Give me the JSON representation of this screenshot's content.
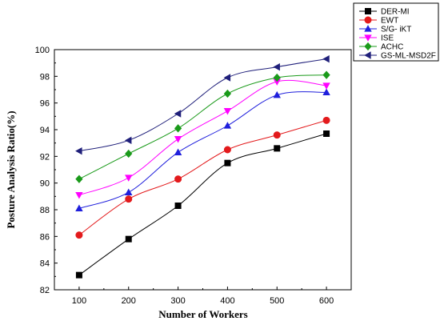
{
  "chart_data": {
    "type": "line",
    "title": "",
    "xlabel": "Number of Workers",
    "ylabel": "Posture Analysis Ratio(%)",
    "x": [
      100,
      200,
      300,
      400,
      500,
      600
    ],
    "xlim": [
      50,
      650
    ],
    "ylim": [
      82,
      100
    ],
    "yticks": [
      82,
      84,
      86,
      88,
      90,
      92,
      94,
      96,
      98,
      100
    ],
    "grid": false,
    "legend_position": "top-right",
    "series": [
      {
        "name": "DER-MI",
        "color": "#000000",
        "marker": "square",
        "values": [
          83.1,
          85.8,
          88.3,
          91.5,
          92.6,
          93.7
        ]
      },
      {
        "name": "EWT",
        "color": "#e31a1c",
        "marker": "circle",
        "values": [
          86.1,
          88.8,
          90.3,
          92.5,
          93.6,
          94.7
        ]
      },
      {
        "name": "S/G- iKT",
        "color": "#1f1fdc",
        "marker": "triangle-up",
        "values": [
          88.1,
          89.3,
          92.3,
          94.3,
          96.6,
          96.8
        ]
      },
      {
        "name": "ISE",
        "color": "#ff00ff",
        "marker": "triangle-down",
        "values": [
          89.1,
          90.4,
          93.3,
          95.4,
          97.6,
          97.3
        ]
      },
      {
        "name": "ACHC",
        "color": "#1a9a1a",
        "marker": "diamond",
        "values": [
          90.3,
          92.2,
          94.1,
          96.7,
          97.9,
          98.1
        ]
      },
      {
        "name": "GS-ML-MSD2F",
        "color": "#1f1f7a",
        "marker": "triangle-left",
        "values": [
          92.4,
          93.2,
          95.2,
          97.9,
          98.7,
          99.3
        ]
      }
    ]
  }
}
